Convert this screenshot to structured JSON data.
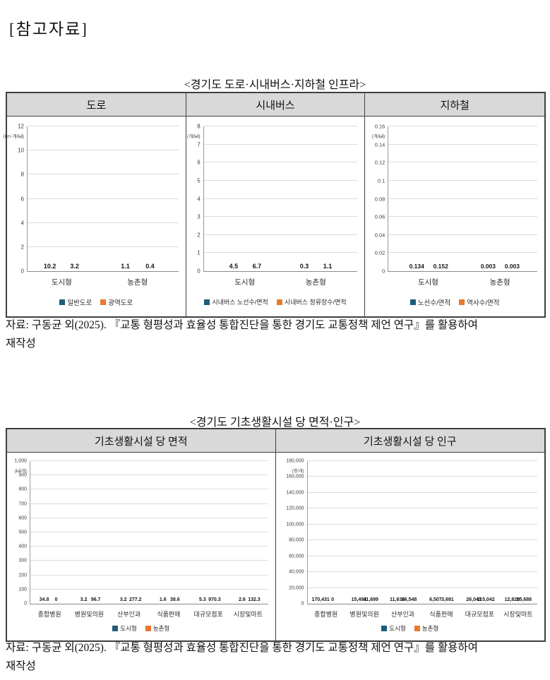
{
  "page": {
    "heading": "[참고자료]",
    "source_line1": "자료: 구동균 외(2025). 『교통 형평성과 효율성 통합진단을 통한 경기도 교통정책 제언 연구』를 활용하여",
    "source_line2": "재작성"
  },
  "colors": {
    "urban_blue": "#1F5C7B",
    "rural_orange": "#E8792F",
    "header_bg": "#D9D9D9",
    "gridline": "#DCDCDC",
    "table_border": "#3F3F3F"
  },
  "section1": {
    "title": "<경기도 도로·시내버스·지하철 인프라>",
    "columns": [
      "도로",
      "시내버스",
      "지하철"
    ]
  },
  "section2": {
    "title": "<경기도 기초생활시설 당 면적·인구>",
    "columns": [
      "기초생활시설 당 면적",
      "기초생활시설 당 인구"
    ]
  },
  "chart_data": [
    {
      "type": "bar",
      "panel": "도로",
      "unit": "(km·개/㎢)",
      "categories": [
        "도시형",
        "농촌형"
      ],
      "series": [
        {
          "name": "일반도로",
          "color": "#1F5C7B",
          "values": [
            10.2,
            1.1
          ],
          "labels": [
            "10.2",
            "1.1"
          ]
        },
        {
          "name": "광역도로",
          "color": "#E8792F",
          "values": [
            3.2,
            0.4
          ],
          "labels": [
            "3.2",
            "0.4"
          ]
        }
      ],
      "ylim": [
        0,
        12
      ],
      "yticks": [
        "0",
        "2",
        "4",
        "6",
        "8",
        "10",
        "12"
      ],
      "grid": true,
      "legend_position": "bottom"
    },
    {
      "type": "bar",
      "panel": "시내버스",
      "unit": "(개/㎢)",
      "categories": [
        "도시형",
        "농촌형"
      ],
      "series": [
        {
          "name": "시내버스 노선수/면적",
          "color": "#1F5C7B",
          "values": [
            4.5,
            0.3
          ],
          "labels": [
            "4.5",
            "0.3"
          ]
        },
        {
          "name": "시내버스 정류장수/면적",
          "color": "#E8792F",
          "values": [
            6.7,
            1.1
          ],
          "labels": [
            "6.7",
            "1.1"
          ]
        }
      ],
      "ylim": [
        0,
        8
      ],
      "yticks": [
        "0",
        "1",
        "2",
        "3",
        "4",
        "5",
        "6",
        "7",
        "8"
      ],
      "grid": true,
      "legend_position": "bottom"
    },
    {
      "type": "bar",
      "panel": "지하철",
      "unit": "(개/㎢)",
      "categories": [
        "도시형",
        "농촌형"
      ],
      "series": [
        {
          "name": "노선수/면적",
          "color": "#1F5C7B",
          "values": [
            0.134,
            0.003
          ],
          "labels": [
            "0.134",
            "0.003"
          ]
        },
        {
          "name": "역사수/면적",
          "color": "#E8792F",
          "values": [
            0.152,
            0.003
          ],
          "labels": [
            "0.152",
            "0.003"
          ]
        }
      ],
      "ylim": [
        0,
        0.16
      ],
      "yticks": [
        "0",
        "0.02",
        "0.04",
        "0.06",
        "0.08",
        "0.1",
        "0.12",
        "0.14",
        "0.16"
      ],
      "grid": true,
      "legend_position": "bottom"
    },
    {
      "type": "bar",
      "panel": "기초생활시설 당 면적",
      "unit": "(㎢/개)",
      "categories": [
        "종합병원",
        "병원및의원",
        "산부인과",
        "식품판매",
        "대규모점포",
        "시장및마트"
      ],
      "series": [
        {
          "name": "도시형",
          "color": "#1F5C7B",
          "values": [
            34.8,
            3.2,
            3.2,
            1.6,
            5.3,
            2.6
          ],
          "labels": [
            "34.8",
            "3.2",
            "3.2",
            "1.6",
            "5.3",
            "2.6"
          ]
        },
        {
          "name": "농촌형",
          "color": "#E8792F",
          "values": [
            0,
            96.7,
            277.2,
            38.6,
            970.3,
            132.3
          ],
          "labels": [
            "0",
            "96.7",
            "277.2",
            "38.6",
            "970.3",
            "132.3"
          ]
        }
      ],
      "ylim": [
        0,
        1000
      ],
      "yticks": [
        "0",
        "100",
        "200",
        "300",
        "400",
        "500",
        "600",
        "700",
        "800",
        "900",
        "1,000"
      ],
      "grid": true,
      "legend_position": "bottom"
    },
    {
      "type": "bar",
      "panel": "기초생활시설 당 인구",
      "unit": "(명/개)",
      "categories": [
        "종합병원",
        "병원및의원",
        "산부인과",
        "식품판매",
        "대규모점포",
        "시장및마트"
      ],
      "series": [
        {
          "name": "도시형",
          "color": "#1F5C7B",
          "values": [
            170431,
            15494,
            11636,
            6507,
            26043,
            12820
          ],
          "labels": [
            "170,431",
            "15,494",
            "11,636",
            "6,507",
            "26,043",
            "12,820"
          ]
        },
        {
          "name": "농촌형",
          "color": "#E8792F",
          "values": [
            0,
            11699,
            26548,
            3691,
            115042,
            15688
          ],
          "labels": [
            "0",
            "11,699",
            "26,548",
            "3,691",
            "115,042",
            "15,688"
          ]
        }
      ],
      "ylim": [
        0,
        180000
      ],
      "yticks": [
        "0",
        "20,000",
        "40,000",
        "60,000",
        "80,000",
        "100,000",
        "120,000",
        "140,000",
        "160,000",
        "180,000"
      ],
      "grid": true,
      "legend_position": "bottom"
    }
  ]
}
